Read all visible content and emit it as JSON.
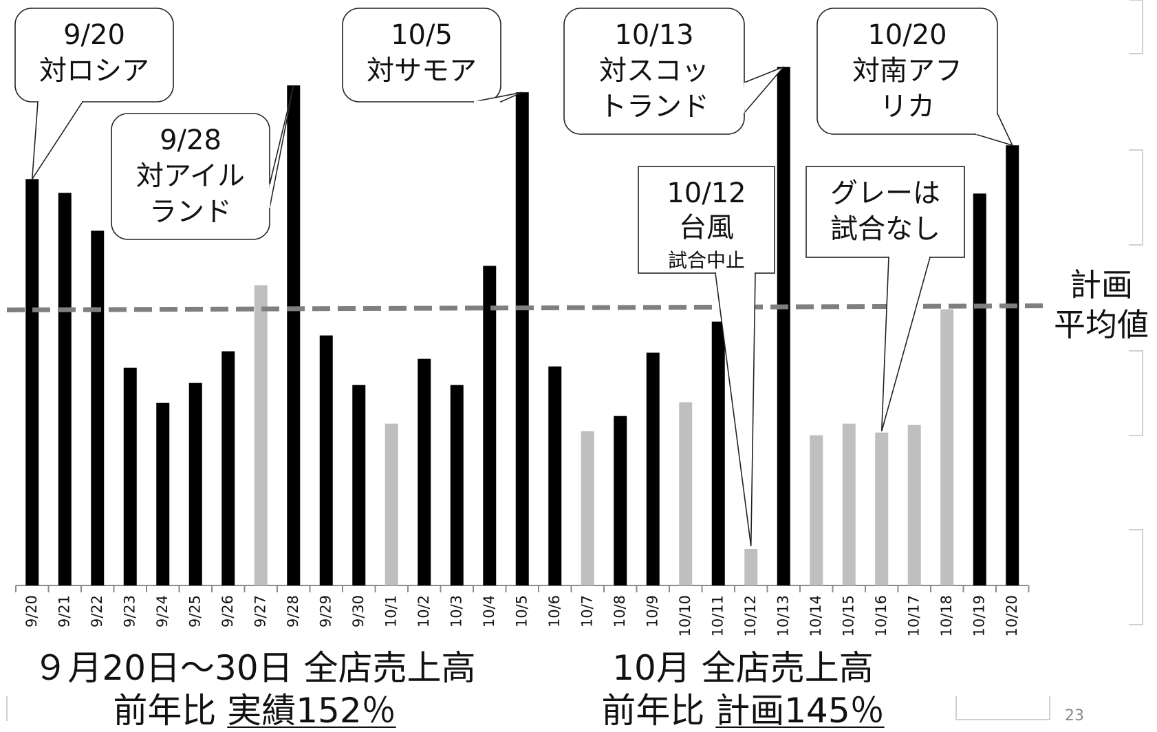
{
  "chart_data": {
    "type": "bar",
    "categories": [
      "9/20",
      "9/21",
      "9/22",
      "9/23",
      "9/24",
      "9/25",
      "9/26",
      "9/27",
      "9/28",
      "9/29",
      "9/30",
      "10/1",
      "10/2",
      "10/3",
      "10/4",
      "10/5",
      "10/6",
      "10/7",
      "10/8",
      "10/9",
      "10/10",
      "10/11",
      "10/12",
      "10/13",
      "10/14",
      "10/15",
      "10/16",
      "10/17",
      "10/18",
      "10/19",
      "10/20"
    ],
    "values": [
      59,
      57,
      51.5,
      31.6,
      26.5,
      29.4,
      34,
      43.6,
      72.6,
      36.3,
      29.1,
      23.5,
      32.9,
      29.1,
      46.4,
      71.6,
      31.8,
      22.4,
      24.6,
      33.8,
      26.6,
      38.3,
      5.3,
      75.3,
      21.8,
      23.5,
      22.2,
      23.3,
      40.1,
      56.9,
      63.9
    ],
    "game_day": [
      true,
      true,
      true,
      true,
      true,
      true,
      true,
      false,
      true,
      true,
      true,
      false,
      true,
      true,
      true,
      true,
      true,
      false,
      true,
      true,
      false,
      true,
      false,
      true,
      false,
      false,
      false,
      false,
      false,
      true,
      true
    ],
    "plan_average": 40.3,
    "ylim": [
      0,
      85
    ],
    "colors": {
      "game": "#000000",
      "no_game": "#bfbfbf",
      "plan_line": "#7f7f7f"
    },
    "plan_label": [
      "計画",
      "平均値"
    ],
    "annotations": [
      {
        "id": "a1",
        "lines": [
          "9/20",
          "対ロシア"
        ],
        "target": "9/20"
      },
      {
        "id": "a2",
        "lines": [
          "9/28",
          "対アイル",
          "ランド"
        ],
        "target": "9/28"
      },
      {
        "id": "a3",
        "lines": [
          "10/5",
          "対サモア"
        ],
        "target": "10/5"
      },
      {
        "id": "a4",
        "lines": [
          "10/13",
          "対スコッ",
          "トランド"
        ],
        "target": "10/13"
      },
      {
        "id": "a5",
        "lines": [
          "10/20",
          "対南アフ",
          "リカ"
        ],
        "target": "10/20"
      },
      {
        "id": "a6",
        "lines": [
          "10/12",
          "台風",
          "試合中止"
        ],
        "target": "10/11"
      },
      {
        "id": "a7",
        "lines": [
          "グレーは",
          "試合なし"
        ],
        "target": "10/16"
      }
    ]
  },
  "captions": {
    "september": {
      "line1": "９月20日～30日 全店売上高",
      "line2_prefix": "前年比 ",
      "line2_underlined": "実績152％"
    },
    "october": {
      "line1": "10月 全店売上高",
      "line2_prefix": "前年比 ",
      "line2_underlined": "計画145％"
    }
  },
  "page_number": "23"
}
